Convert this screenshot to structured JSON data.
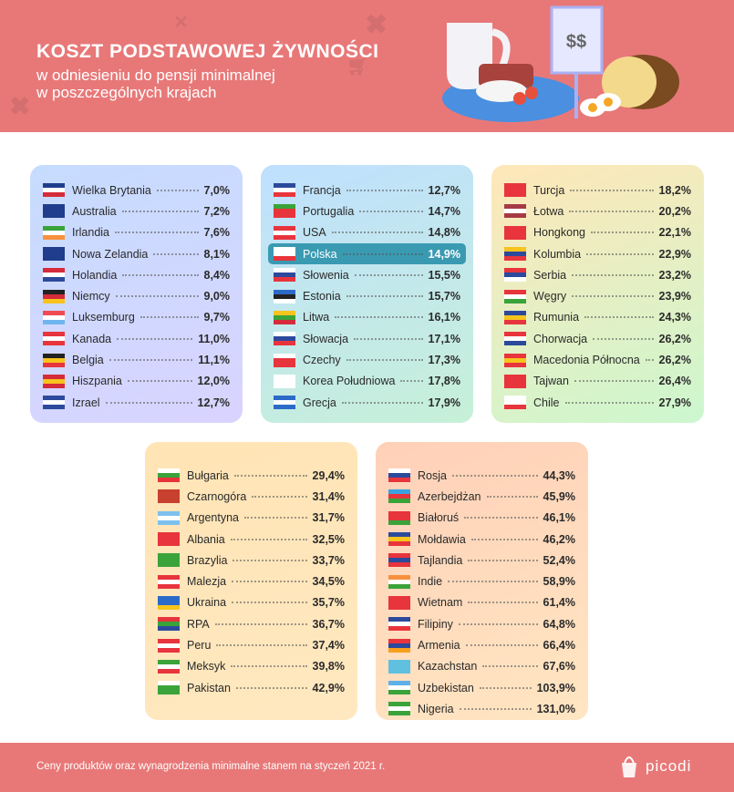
{
  "header": {
    "title": "KOSZT PODSTAWOWEJ ŻYWNOŚCI",
    "subtitle_line1": "w odniesieniu do pensji minimalnej",
    "subtitle_line2": "w poszczególnych krajach",
    "price_sign": "$$",
    "background_color": "#e87878"
  },
  "cards": [
    {
      "rows": [
        {
          "country": "Wielka Brytania",
          "value": "7,0%",
          "flag": [
            "#1f3d8c",
            "#ffffff",
            "#d52b3a"
          ]
        },
        {
          "country": "Australia",
          "value": "7,2%",
          "flag": [
            "#1f3d8c",
            "#1f3d8c",
            "#1f3d8c"
          ]
        },
        {
          "country": "Irlandia",
          "value": "7,6%",
          "flag": [
            "#3aa33a",
            "#ffffff",
            "#f7913d"
          ]
        },
        {
          "country": "Nowa Zelandia",
          "value": "8,1%",
          "flag": [
            "#1f3d8c",
            "#1f3d8c",
            "#1f3d8c"
          ]
        },
        {
          "country": "Holandia",
          "value": "8,4%",
          "flag": [
            "#d52b3a",
            "#ffffff",
            "#2c4a9c"
          ]
        },
        {
          "country": "Niemcy",
          "value": "9,0%",
          "flag": [
            "#222222",
            "#d52b3a",
            "#f7c31d"
          ]
        },
        {
          "country": "Luksemburg",
          "value": "9,7%",
          "flag": [
            "#ef4a52",
            "#ffffff",
            "#6fb6f0"
          ]
        },
        {
          "country": "Kanada",
          "value": "11,0%",
          "flag": [
            "#e8343c",
            "#ffffff",
            "#e8343c"
          ]
        },
        {
          "country": "Belgia",
          "value": "11,1%",
          "flag": [
            "#222222",
            "#f7c31d",
            "#e8343c"
          ]
        },
        {
          "country": "Hiszpania",
          "value": "12,0%",
          "flag": [
            "#d52b3a",
            "#f7c31d",
            "#d52b3a"
          ]
        },
        {
          "country": "Izrael",
          "value": "12,7%",
          "flag": [
            "#2c4a9c",
            "#ffffff",
            "#2c4a9c"
          ]
        }
      ]
    },
    {
      "rows": [
        {
          "country": "Francja",
          "value": "12,7%",
          "flag": [
            "#2c4a9c",
            "#ffffff",
            "#e8343c"
          ]
        },
        {
          "country": "Portugalia",
          "value": "14,7%",
          "flag": [
            "#3aa33a",
            "#e8343c",
            "#e8343c"
          ]
        },
        {
          "country": "USA",
          "value": "14,8%",
          "flag": [
            "#e8343c",
            "#ffffff",
            "#e8343c"
          ]
        },
        {
          "country": "Polska",
          "value": "14,9%",
          "flag": [
            "#ffffff",
            "#ffffff",
            "#e8343c"
          ],
          "highlight": true
        },
        {
          "country": "Słowenia",
          "value": "15,5%",
          "flag": [
            "#ffffff",
            "#2c4a9c",
            "#e8343c"
          ]
        },
        {
          "country": "Estonia",
          "value": "15,7%",
          "flag": [
            "#2c6ac9",
            "#222222",
            "#ffffff"
          ]
        },
        {
          "country": "Litwa",
          "value": "16,1%",
          "flag": [
            "#f7c31d",
            "#3aa33a",
            "#d52b3a"
          ]
        },
        {
          "country": "Słowacja",
          "value": "17,1%",
          "flag": [
            "#ffffff",
            "#2c4a9c",
            "#e8343c"
          ]
        },
        {
          "country": "Czechy",
          "value": "17,3%",
          "flag": [
            "#ffffff",
            "#e8343c",
            "#e8343c"
          ]
        },
        {
          "country": "Korea Południowa",
          "value": "17,8%",
          "flag": [
            "#ffffff",
            "#ffffff",
            "#ffffff"
          ]
        },
        {
          "country": "Grecja",
          "value": "17,9%",
          "flag": [
            "#2c6ac9",
            "#ffffff",
            "#2c6ac9"
          ]
        }
      ]
    },
    {
      "rows": [
        {
          "country": "Turcja",
          "value": "18,2%",
          "flag": [
            "#e8343c",
            "#e8343c",
            "#e8343c"
          ]
        },
        {
          "country": "Łotwa",
          "value": "20,2%",
          "flag": [
            "#a63a44",
            "#ffffff",
            "#a63a44"
          ]
        },
        {
          "country": "Hongkong",
          "value": "22,1%",
          "flag": [
            "#e8343c",
            "#e8343c",
            "#e8343c"
          ]
        },
        {
          "country": "Kolumbia",
          "value": "22,9%",
          "flag": [
            "#f7c31d",
            "#2c4a9c",
            "#e8343c"
          ]
        },
        {
          "country": "Serbia",
          "value": "23,2%",
          "flag": [
            "#e8343c",
            "#2c4a9c",
            "#ffffff"
          ]
        },
        {
          "country": "Węgry",
          "value": "23,9%",
          "flag": [
            "#e8343c",
            "#ffffff",
            "#3aa33a"
          ]
        },
        {
          "country": "Rumunia",
          "value": "24,3%",
          "flag": [
            "#2c4a9c",
            "#f7c31d",
            "#e8343c"
          ]
        },
        {
          "country": "Chorwacja",
          "value": "26,2%",
          "flag": [
            "#e8343c",
            "#ffffff",
            "#2c4a9c"
          ]
        },
        {
          "country": "Macedonia Północna",
          "value": "26,2%",
          "flag": [
            "#e8343c",
            "#f7c31d",
            "#e8343c"
          ]
        },
        {
          "country": "Tajwan",
          "value": "26,4%",
          "flag": [
            "#e8343c",
            "#e8343c",
            "#e8343c"
          ]
        },
        {
          "country": "Chile",
          "value": "27,9%",
          "flag": [
            "#ffffff",
            "#ffffff",
            "#e8343c"
          ]
        }
      ]
    },
    {
      "rows": [
        {
          "country": "Bułgaria",
          "value": "29,4%",
          "flag": [
            "#ffffff",
            "#3aa33a",
            "#e8343c"
          ]
        },
        {
          "country": "Czarnogóra",
          "value": "31,4%",
          "flag": [
            "#c8402e",
            "#c8402e",
            "#c8402e"
          ]
        },
        {
          "country": "Argentyna",
          "value": "31,7%",
          "flag": [
            "#7cc0ee",
            "#ffffff",
            "#7cc0ee"
          ]
        },
        {
          "country": "Albania",
          "value": "32,5%",
          "flag": [
            "#e8343c",
            "#e8343c",
            "#e8343c"
          ]
        },
        {
          "country": "Brazylia",
          "value": "33,7%",
          "flag": [
            "#3aa33a",
            "#3aa33a",
            "#3aa33a"
          ]
        },
        {
          "country": "Malezja",
          "value": "34,5%",
          "flag": [
            "#e8343c",
            "#ffffff",
            "#e8343c"
          ]
        },
        {
          "country": "Ukraina",
          "value": "35,7%",
          "flag": [
            "#2c6ac9",
            "#2c6ac9",
            "#f7c31d"
          ]
        },
        {
          "country": "RPA",
          "value": "36,7%",
          "flag": [
            "#e8343c",
            "#3aa33a",
            "#2c4a9c"
          ]
        },
        {
          "country": "Peru",
          "value": "37,4%",
          "flag": [
            "#e8343c",
            "#ffffff",
            "#e8343c"
          ]
        },
        {
          "country": "Meksyk",
          "value": "39,8%",
          "flag": [
            "#3aa33a",
            "#ffffff",
            "#e8343c"
          ]
        },
        {
          "country": "Pakistan",
          "value": "42,9%",
          "flag": [
            "#ffffff",
            "#3aa33a",
            "#3aa33a"
          ]
        }
      ]
    },
    {
      "rows": [
        {
          "country": "Rosja",
          "value": "44,3%",
          "flag": [
            "#ffffff",
            "#2c4a9c",
            "#e8343c"
          ]
        },
        {
          "country": "Azerbejdżan",
          "value": "45,9%",
          "flag": [
            "#3aa3e0",
            "#e8343c",
            "#3aa33a"
          ]
        },
        {
          "country": "Białoruś",
          "value": "46,1%",
          "flag": [
            "#e8343c",
            "#e8343c",
            "#3aa33a"
          ]
        },
        {
          "country": "Mołdawia",
          "value": "46,2%",
          "flag": [
            "#2c4a9c",
            "#f7c31d",
            "#e8343c"
          ]
        },
        {
          "country": "Tajlandia",
          "value": "52,4%",
          "flag": [
            "#e8343c",
            "#2c4a9c",
            "#e8343c"
          ]
        },
        {
          "country": "Indie",
          "value": "58,9%",
          "flag": [
            "#f7913d",
            "#ffffff",
            "#3aa33a"
          ]
        },
        {
          "country": "Wietnam",
          "value": "61,4%",
          "flag": [
            "#e8343c",
            "#e8343c",
            "#e8343c"
          ]
        },
        {
          "country": "Filipiny",
          "value": "64,8%",
          "flag": [
            "#2c4a9c",
            "#ffffff",
            "#e8343c"
          ]
        },
        {
          "country": "Armenia",
          "value": "66,4%",
          "flag": [
            "#e8343c",
            "#2c4a9c",
            "#f7a01d"
          ]
        },
        {
          "country": "Kazachstan",
          "value": "67,6%",
          "flag": [
            "#5fc0e0",
            "#5fc0e0",
            "#5fc0e0"
          ]
        },
        {
          "country": "Uzbekistan",
          "value": "103,9%",
          "flag": [
            "#5fb0e8",
            "#ffffff",
            "#3aa33a"
          ]
        },
        {
          "country": "Nigeria",
          "value": "131,0%",
          "flag": [
            "#3aa33a",
            "#ffffff",
            "#3aa33a"
          ]
        }
      ]
    }
  ],
  "footer": {
    "note": "Ceny produktów oraz wynagrodzenia minimalne stanem na styczeń 2021 r.",
    "brand": "picodi"
  }
}
